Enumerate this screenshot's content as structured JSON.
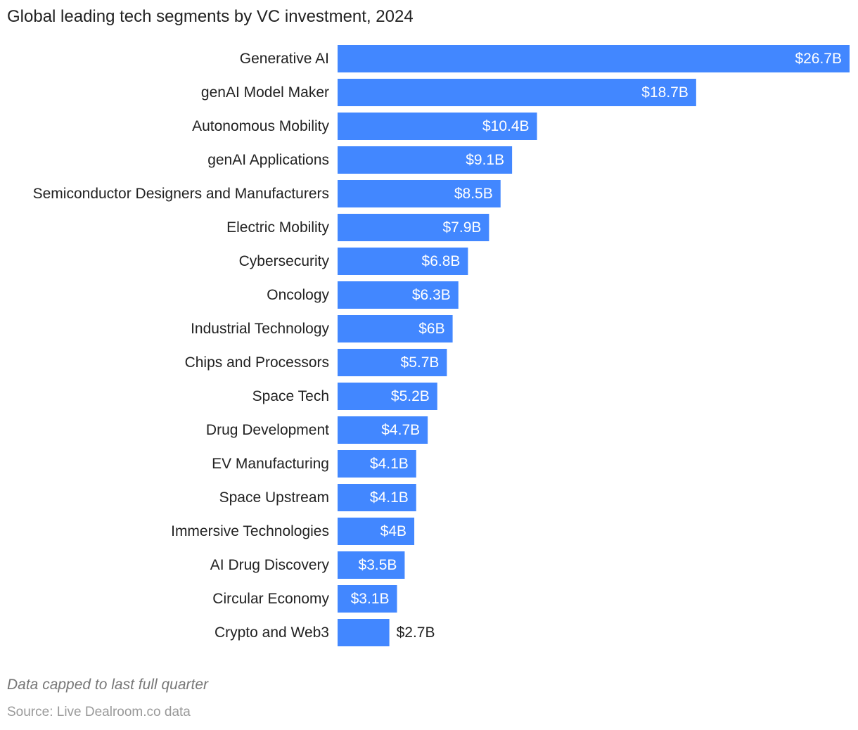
{
  "chart_data": {
    "type": "bar",
    "orientation": "horizontal",
    "title": "Global leading tech segments by VC investment, 2024",
    "categories": [
      "Generative AI",
      "genAI Model Maker",
      "Autonomous Mobility",
      "genAI Applications",
      "Semiconductor Designers and Manufacturers",
      "Electric Mobility",
      "Cybersecurity",
      "Oncology",
      "Industrial Technology",
      "Chips and Processors",
      "Space Tech",
      "Drug Development",
      "EV Manufacturing",
      "Space Upstream",
      "Immersive Technologies",
      "AI Drug Discovery",
      "Circular Economy",
      "Crypto and Web3"
    ],
    "values": [
      26.7,
      18.7,
      10.4,
      9.1,
      8.5,
      7.9,
      6.8,
      6.3,
      6,
      5.7,
      5.2,
      4.7,
      4.1,
      4.1,
      4,
      3.5,
      3.1,
      2.7
    ],
    "value_labels": [
      "$26.7B",
      "$18.7B",
      "$10.4B",
      "$9.1B",
      "$8.5B",
      "$7.9B",
      "$6.8B",
      "$6.3B",
      "$6B",
      "$5.7B",
      "$5.2B",
      "$4.7B",
      "$4.1B",
      "$4.1B",
      "$4B",
      "$3.5B",
      "$3.1B",
      "$2.7B"
    ],
    "xlim": [
      0,
      26.7
    ],
    "grid": false,
    "bar_color": "#4287ff",
    "label_inside_color": "#ffffff",
    "label_outside_color": "#222222"
  },
  "notes": {
    "footnote": "Data capped to last full quarter",
    "source": "Source: Live Dealroom.co data"
  }
}
